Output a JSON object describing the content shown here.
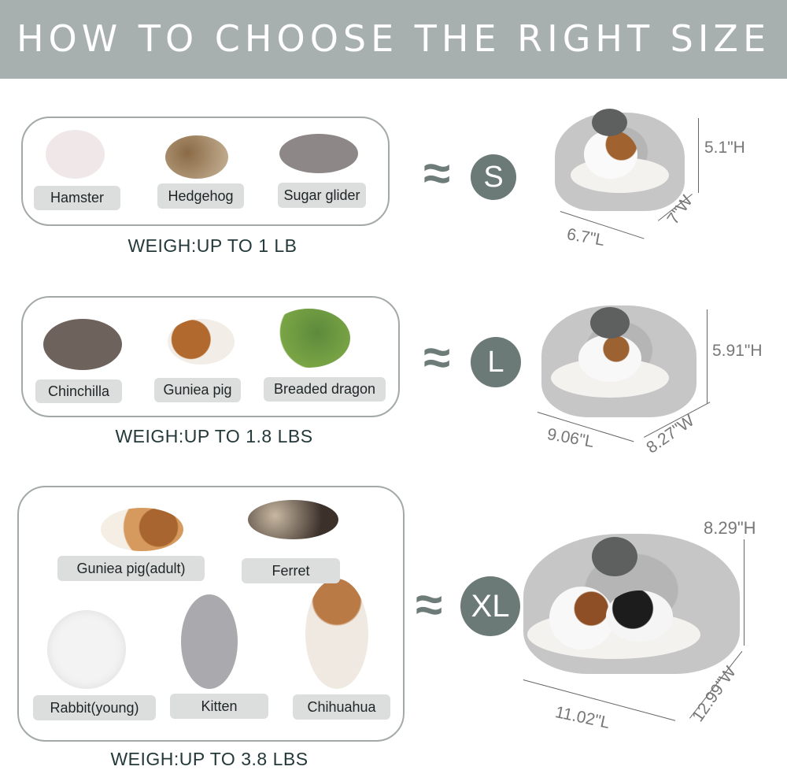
{
  "header": {
    "title": "HOW TO CHOOSE THE RIGHT SIZE"
  },
  "colors": {
    "header_bg": "#a8afaf",
    "size_circle": "#6b7a77",
    "label_pill": "#dcdede",
    "text_dark": "#24393a"
  },
  "approx_symbol": "≈",
  "sizes": [
    {
      "size": "S",
      "animals": [
        "Hamster",
        "Hedgehog",
        "Sugar glider"
      ],
      "weight": "WEIGH:UP TO 1 LB",
      "height": "5.1\"H",
      "length": "6.7\"L",
      "width": "7\"W"
    },
    {
      "size": "L",
      "animals": [
        "Chinchilla",
        "Guniea pig",
        "Breaded dragon"
      ],
      "weight": "WEIGH:UP TO 1.8 LBS",
      "height": "5.91\"H",
      "length": "9.06\"L",
      "width": "8.27\"W"
    },
    {
      "size": "XL",
      "animals": [
        "Guniea pig(adult)",
        "Ferret",
        "Rabbit(young)",
        "Kitten",
        "Chihuahua"
      ],
      "weight": "WEIGH:UP TO 3.8 LBS",
      "height": "8.29\"H",
      "length": "11.02\"L",
      "width": "12.99\"W"
    }
  ]
}
